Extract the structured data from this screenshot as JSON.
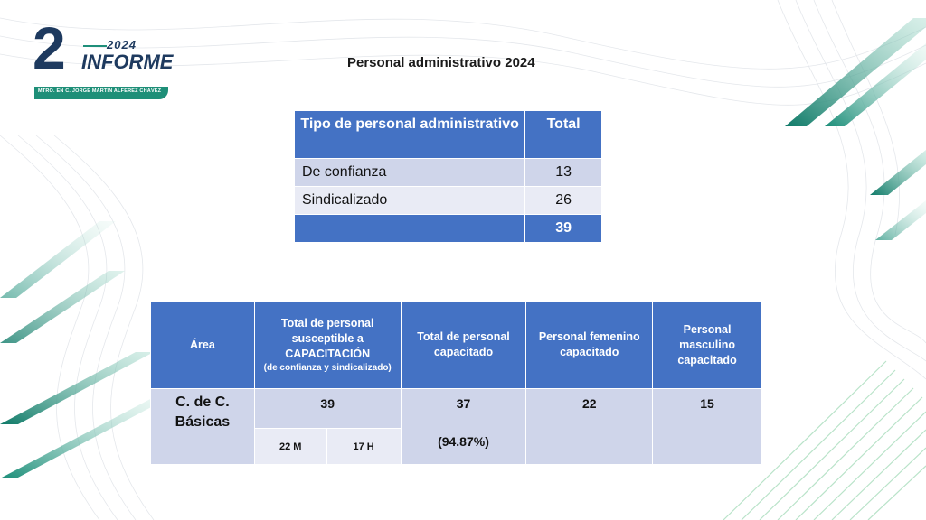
{
  "logo": {
    "number": "2",
    "year": "2024",
    "word": "INFORME",
    "subtitle": "MTRO. EN C. JORGE MARTÍN ALFÉREZ CHÁVEZ"
  },
  "title": "Personal administrativo 2024",
  "table1": {
    "headers": [
      "Tipo de personal administrativo",
      "Total"
    ],
    "rows": [
      {
        "label": "De confianza",
        "value": "13"
      },
      {
        "label": "Sindicalizado",
        "value": "26"
      }
    ],
    "total": {
      "label": "",
      "value": "39"
    }
  },
  "table2": {
    "headers": {
      "area": "Área",
      "susceptible": "Total de personal susceptible a CAPACITACIÓN",
      "susceptible_note": "(de confianza y sindicalizado)",
      "capacitado": "Total de personal capacitado",
      "femenino": "Personal femenino capacitado",
      "masculino": "Personal masculino capacitado"
    },
    "row": {
      "area": "C. de C. Básicas",
      "susceptible_total": "39",
      "susceptible_m": "22  M",
      "susceptible_h": "17  H",
      "capacitado": "37",
      "capacitado_pct": "(94.87%)",
      "femenino": "22",
      "masculino": "15"
    }
  },
  "colors": {
    "header_blue": "#4472c4",
    "row_dark": "#cfd5ea",
    "row_light": "#e9ebf5",
    "accent_teal": "#1e8f78",
    "logo_navy": "#1e3a5f"
  }
}
